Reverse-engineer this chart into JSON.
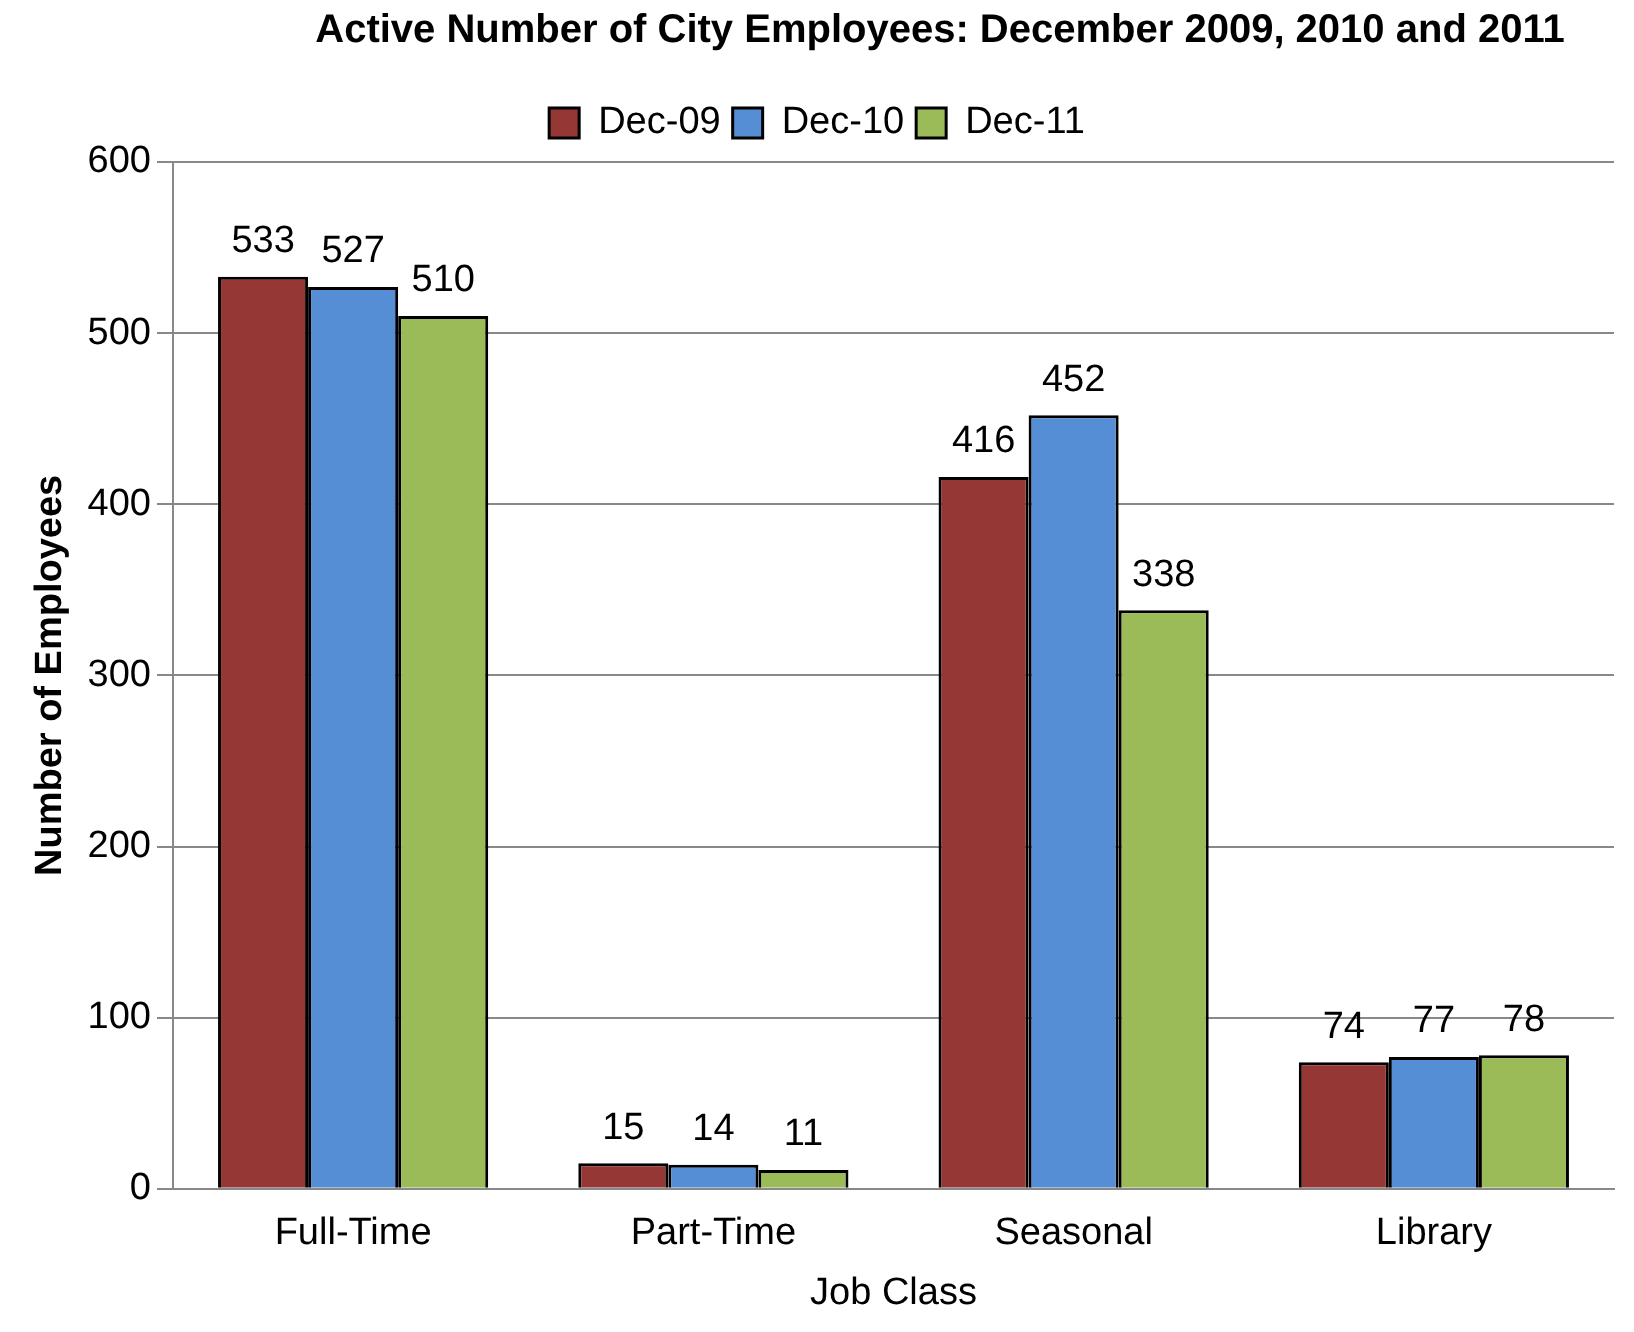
{
  "chart_data": {
    "type": "bar",
    "title": "Active Number of City Employees: December 2009, 2010 and 2011",
    "xlabel": "Job Class",
    "ylabel": "Number of Employees",
    "categories": [
      "Full-Time",
      "Part-Time",
      "Seasonal",
      "Library"
    ],
    "series": [
      {
        "name": "Dec-09",
        "color": "#953735",
        "values": [
          533,
          15,
          416,
          74
        ]
      },
      {
        "name": "Dec-10",
        "color": "#558ed5",
        "values": [
          527,
          14,
          452,
          77
        ]
      },
      {
        "name": "Dec-11",
        "color": "#9bbb59",
        "values": [
          510,
          11,
          338,
          78
        ]
      }
    ],
    "ylim": [
      0,
      600
    ],
    "yticks": [
      0,
      100,
      200,
      300,
      400,
      500,
      600
    ],
    "grid": "y",
    "legend": "top",
    "data_labels": true
  }
}
